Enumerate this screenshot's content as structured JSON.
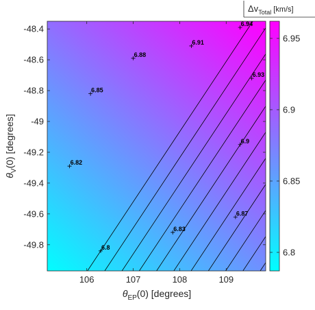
{
  "chart_data": {
    "type": "heatmap",
    "subtype": "filled contour with labeled contour lines",
    "xlabel_symbol": "θ",
    "xlabel_sub": "EP",
    "xlabel_rest": "(0) [degrees]",
    "ylabel_symbol": "θ",
    "ylabel_sub": "V",
    "ylabel_rest": "(0) [degrees]",
    "colorbar_title_main": "Δv",
    "colorbar_title_sub": "Total",
    "colorbar_title_unit": " [km/s]",
    "xlim": [
      105.15,
      109.85
    ],
    "ylim": [
      -49.97,
      -48.35
    ],
    "clim": [
      6.787,
      6.962
    ],
    "xticks": [
      106,
      107,
      108,
      109
    ],
    "yticks": [
      -48.4,
      -48.6,
      -48.8,
      -49,
      -49.2,
      -49.4,
      -49.6,
      -49.8
    ],
    "cticks": [
      6.8,
      6.85,
      6.9,
      6.95
    ],
    "tick_labels_x": [
      "106",
      "107",
      "108",
      "109"
    ],
    "tick_labels_y": [
      "-48.4",
      "-48.6",
      "-48.8",
      "-49",
      "-49.2",
      "-49.4",
      "-49.6",
      "-49.8"
    ],
    "tick_labels_c": [
      "6.8",
      "6.85",
      "6.9",
      "6.95"
    ],
    "colormap": [
      "#00ffff",
      "#ff00ff"
    ],
    "contour_levels": [
      6.8,
      6.81,
      6.82,
      6.83,
      6.84,
      6.85,
      6.86,
      6.87,
      6.88,
      6.89,
      6.9,
      6.91,
      6.92,
      6.93,
      6.94
    ],
    "labeled_contours": [
      {
        "text": "6.8",
        "x": 106.3,
        "y": -49.84
      },
      {
        "text": "6.82",
        "x": 105.63,
        "y": -49.29
      },
      {
        "text": "6.83",
        "x": 107.85,
        "y": -49.72
      },
      {
        "text": "6.85",
        "x": 106.08,
        "y": -48.82
      },
      {
        "text": "6.87",
        "x": 109.2,
        "y": -49.62
      },
      {
        "text": "6.88",
        "x": 107.0,
        "y": -48.59
      },
      {
        "text": "6.9",
        "x": 109.3,
        "y": -49.15
      },
      {
        "text": "6.91",
        "x": 108.25,
        "y": -48.51
      },
      {
        "text": "6.93",
        "x": 109.55,
        "y": -48.72
      },
      {
        "text": "6.94",
        "x": 109.3,
        "y": -48.39
      }
    ],
    "grid": false,
    "colorbar": "right"
  }
}
